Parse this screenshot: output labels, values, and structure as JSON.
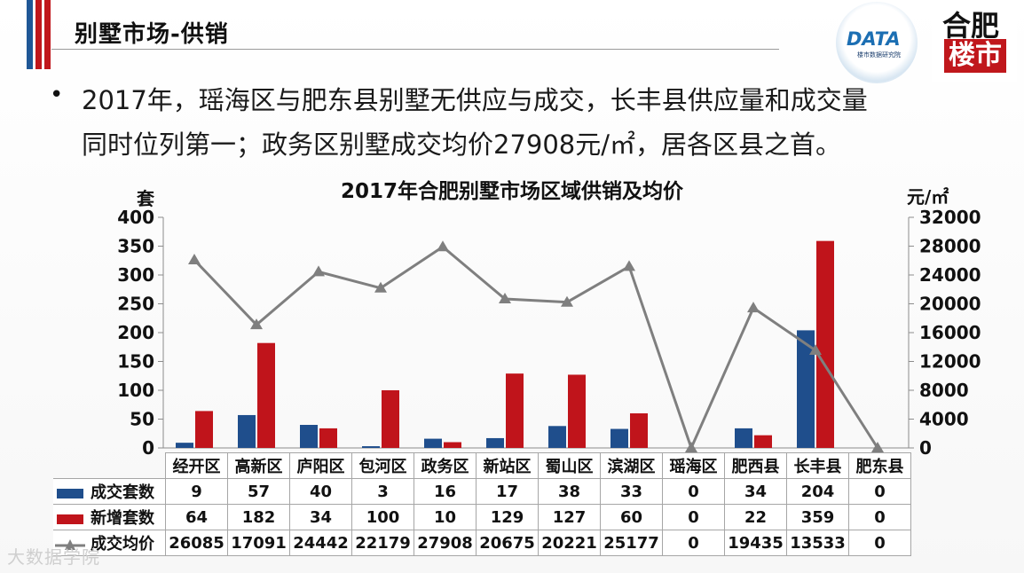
{
  "header": {
    "title": "别墅市场-供销",
    "logo_left_text": "DATA",
    "logo_left_sub": "楼市数据研究院",
    "logo_right_line1": "合肥",
    "logo_right_line2": "楼市"
  },
  "body": {
    "bullet": "•",
    "line1": "2017年，瑶海区与肥东县别墅无供应与成交，长丰县供应量和成交量",
    "line2": "同时位列第一；政务区别墅成交均价27908元/㎡，居各区县之首。"
  },
  "colors": {
    "deal_units": "#1f4e8c",
    "new_units": "#c0141b",
    "avg_price": "#7f7f7f"
  },
  "chart_data": {
    "type": "bar",
    "title": "2017年合肥别墅市场区域供销及均价",
    "ylabel": "套",
    "y2label": "元/㎡",
    "ylim": [
      0,
      400
    ],
    "y2lim": [
      0,
      32000
    ],
    "yticks": [
      "0",
      "50",
      "100",
      "150",
      "200",
      "250",
      "300",
      "350",
      "400"
    ],
    "y2ticks": [
      "0",
      "4000",
      "8000",
      "12000",
      "16000",
      "20000",
      "24000",
      "28000",
      "32000"
    ],
    "categories": [
      "经开区",
      "高新区",
      "庐阳区",
      "包河区",
      "政务区",
      "新站区",
      "蜀山区",
      "滨湖区",
      "瑶海区",
      "肥西县",
      "长丰县",
      "肥东县"
    ],
    "series": [
      {
        "name": "成交套数",
        "type": "bar",
        "axis": "left",
        "values": [
          9,
          57,
          40,
          3,
          16,
          17,
          38,
          33,
          0,
          34,
          204,
          0
        ]
      },
      {
        "name": "新增套数",
        "type": "bar",
        "axis": "left",
        "values": [
          64,
          182,
          34,
          100,
          10,
          129,
          127,
          60,
          0,
          22,
          359,
          0
        ]
      },
      {
        "name": "成交均价",
        "type": "line",
        "axis": "right",
        "values": [
          26085,
          17091,
          24442,
          22179,
          27908,
          20675,
          20221,
          25177,
          0,
          19435,
          13533,
          0
        ]
      }
    ]
  },
  "table": {
    "rows": [
      {
        "label": "成交套数",
        "cells": [
          "9",
          "57",
          "40",
          "3",
          "16",
          "17",
          "38",
          "33",
          "0",
          "34",
          "204",
          "0"
        ]
      },
      {
        "label": "新增套数",
        "cells": [
          "64",
          "182",
          "34",
          "100",
          "10",
          "129",
          "127",
          "60",
          "0",
          "22",
          "359",
          "0"
        ]
      },
      {
        "label": "成交均价",
        "cells": [
          "26085",
          "17091",
          "24442",
          "22179",
          "27908",
          "20675",
          "20221",
          "25177",
          "0",
          "19435",
          "13533",
          "0"
        ]
      }
    ]
  },
  "watermark": "大数据学院"
}
